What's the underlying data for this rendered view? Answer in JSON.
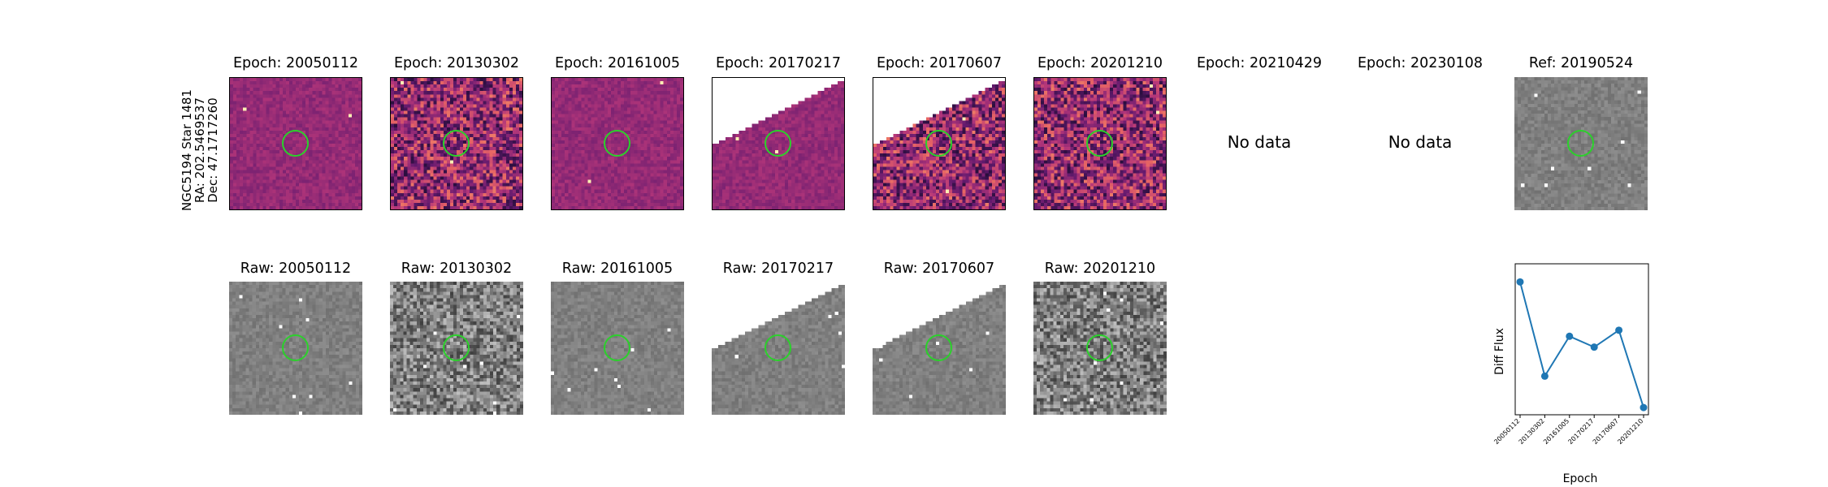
{
  "target": {
    "lines": [
      "NGC5194 Star 1481",
      "RA: 202.5469537",
      "Dec: 47.1717260"
    ]
  },
  "top_row": [
    {
      "title": "Epoch: 20050112",
      "has_data": true,
      "cmap": "magma",
      "mask": "none",
      "seed": 11
    },
    {
      "title": "Epoch: 20130302",
      "has_data": true,
      "cmap": "magma",
      "mask": "none",
      "seed": 22,
      "noise": "high"
    },
    {
      "title": "Epoch: 20161005",
      "has_data": true,
      "cmap": "magma",
      "mask": "none",
      "seed": 33
    },
    {
      "title": "Epoch: 20170217",
      "has_data": true,
      "cmap": "magma",
      "mask": "top-left",
      "seed": 44
    },
    {
      "title": "Epoch: 20170607",
      "has_data": true,
      "cmap": "magma",
      "mask": "top-left",
      "seed": 55,
      "noise": "high"
    },
    {
      "title": "Epoch: 20201210",
      "has_data": true,
      "cmap": "magma",
      "mask": "none",
      "seed": 66,
      "noise": "high"
    },
    {
      "title": "Epoch: 20210429",
      "has_data": false,
      "message": "No data"
    },
    {
      "title": "Epoch: 20230108",
      "has_data": false,
      "message": "No data"
    },
    {
      "title": "Ref: 20190524",
      "has_data": true,
      "cmap": "gray",
      "mask": "none",
      "seed": 77
    }
  ],
  "bottom_row": [
    {
      "title": "Raw: 20050112",
      "cmap": "gray",
      "mask": "none",
      "seed": 111
    },
    {
      "title": "Raw: 20130302",
      "cmap": "gray",
      "mask": "none",
      "seed": 122,
      "noise": "high"
    },
    {
      "title": "Raw: 20161005",
      "cmap": "gray",
      "mask": "none",
      "seed": 133
    },
    {
      "title": "Raw: 20170217",
      "cmap": "gray",
      "mask": "top-left",
      "seed": 144
    },
    {
      "title": "Raw: 20170607",
      "cmap": "gray",
      "mask": "top-left",
      "seed": 155
    },
    {
      "title": "Raw: 20201210",
      "cmap": "gray",
      "mask": "none",
      "seed": 166,
      "noise": "high"
    }
  ],
  "colors": {
    "aperture": "#2bd12b",
    "series": "#1f77b4"
  },
  "chart_data": {
    "type": "line",
    "x": [
      "20050112",
      "20130302",
      "20161005",
      "20170217",
      "20170607",
      "20201210"
    ],
    "values": [
      1.0,
      0.22,
      0.55,
      0.46,
      0.6,
      -0.04
    ],
    "xlabel": "Epoch",
    "ylabel": "Diff Flux",
    "ylim": [
      -0.1,
      1.15
    ],
    "grid": false,
    "y_ticks_shown": false,
    "marker": "circle"
  }
}
